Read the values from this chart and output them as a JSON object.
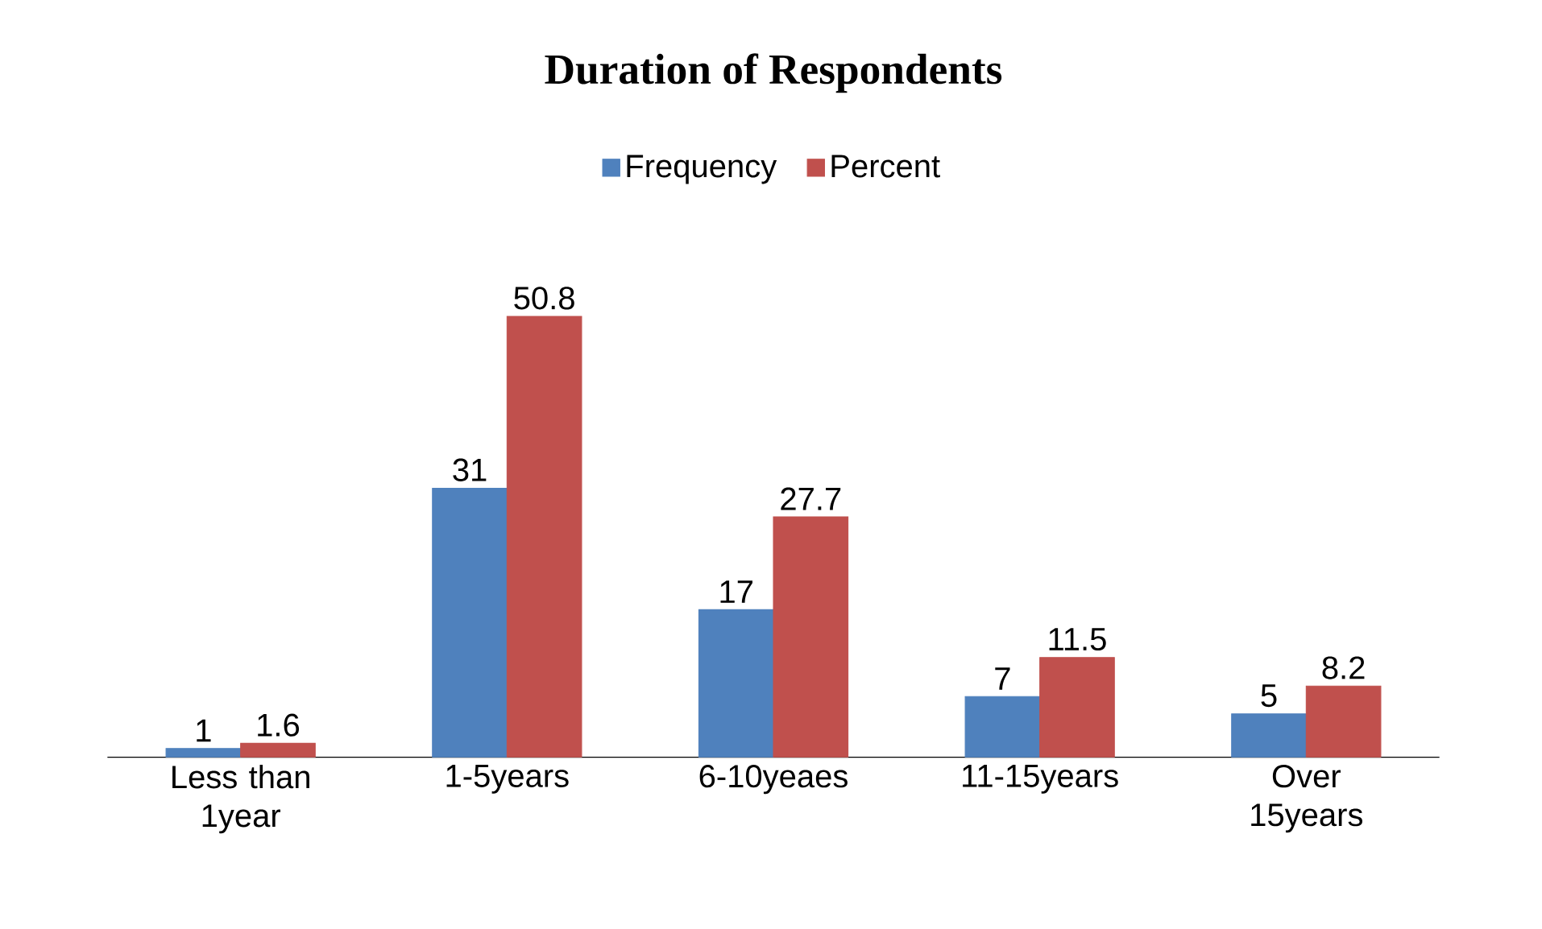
{
  "chart_data": {
    "type": "bar",
    "title": "Duration of Respondents",
    "categories": [
      "Less than 1year",
      "1-5years",
      "6-10yeaes",
      "11-15years",
      "Over 15years"
    ],
    "series": [
      {
        "name": "Frequency",
        "color": "#4f81bd",
        "values": [
          1,
          31,
          17,
          7,
          5
        ]
      },
      {
        "name": "Percent",
        "color": "#c0504d",
        "values": [
          1.6,
          50.8,
          27.7,
          11.5,
          8.2
        ]
      }
    ],
    "data_labels": true,
    "legend": "top"
  }
}
